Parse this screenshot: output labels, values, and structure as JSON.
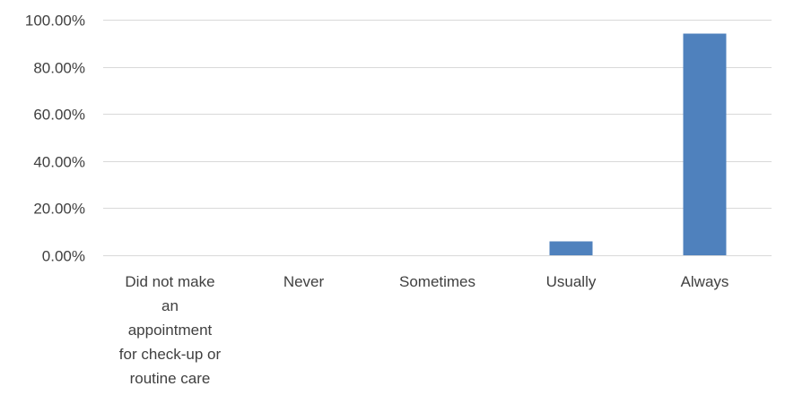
{
  "chart_data": {
    "type": "bar",
    "title": "",
    "xlabel": "",
    "ylabel": "",
    "categories": [
      [
        "Did not make",
        "an",
        "appointment",
        "for check-up or",
        "routine care"
      ],
      [
        "Never"
      ],
      [
        "Sometimes"
      ],
      [
        "Usually"
      ],
      [
        "Always"
      ]
    ],
    "values": [
      0.0,
      0.0,
      0.0,
      5.9,
      94.1
    ],
    "ylim": [
      0,
      100
    ],
    "yticks": [
      0,
      20,
      40,
      60,
      80,
      100
    ],
    "ytick_labels": [
      "0.00%",
      "20.00%",
      "40.00%",
      "60.00%",
      "80.00%",
      "100.00%"
    ],
    "grid": true,
    "legend": "none",
    "bar_color": "#4f81bd",
    "grid_color": "#d9d9d9",
    "text_color": "#404040"
  }
}
